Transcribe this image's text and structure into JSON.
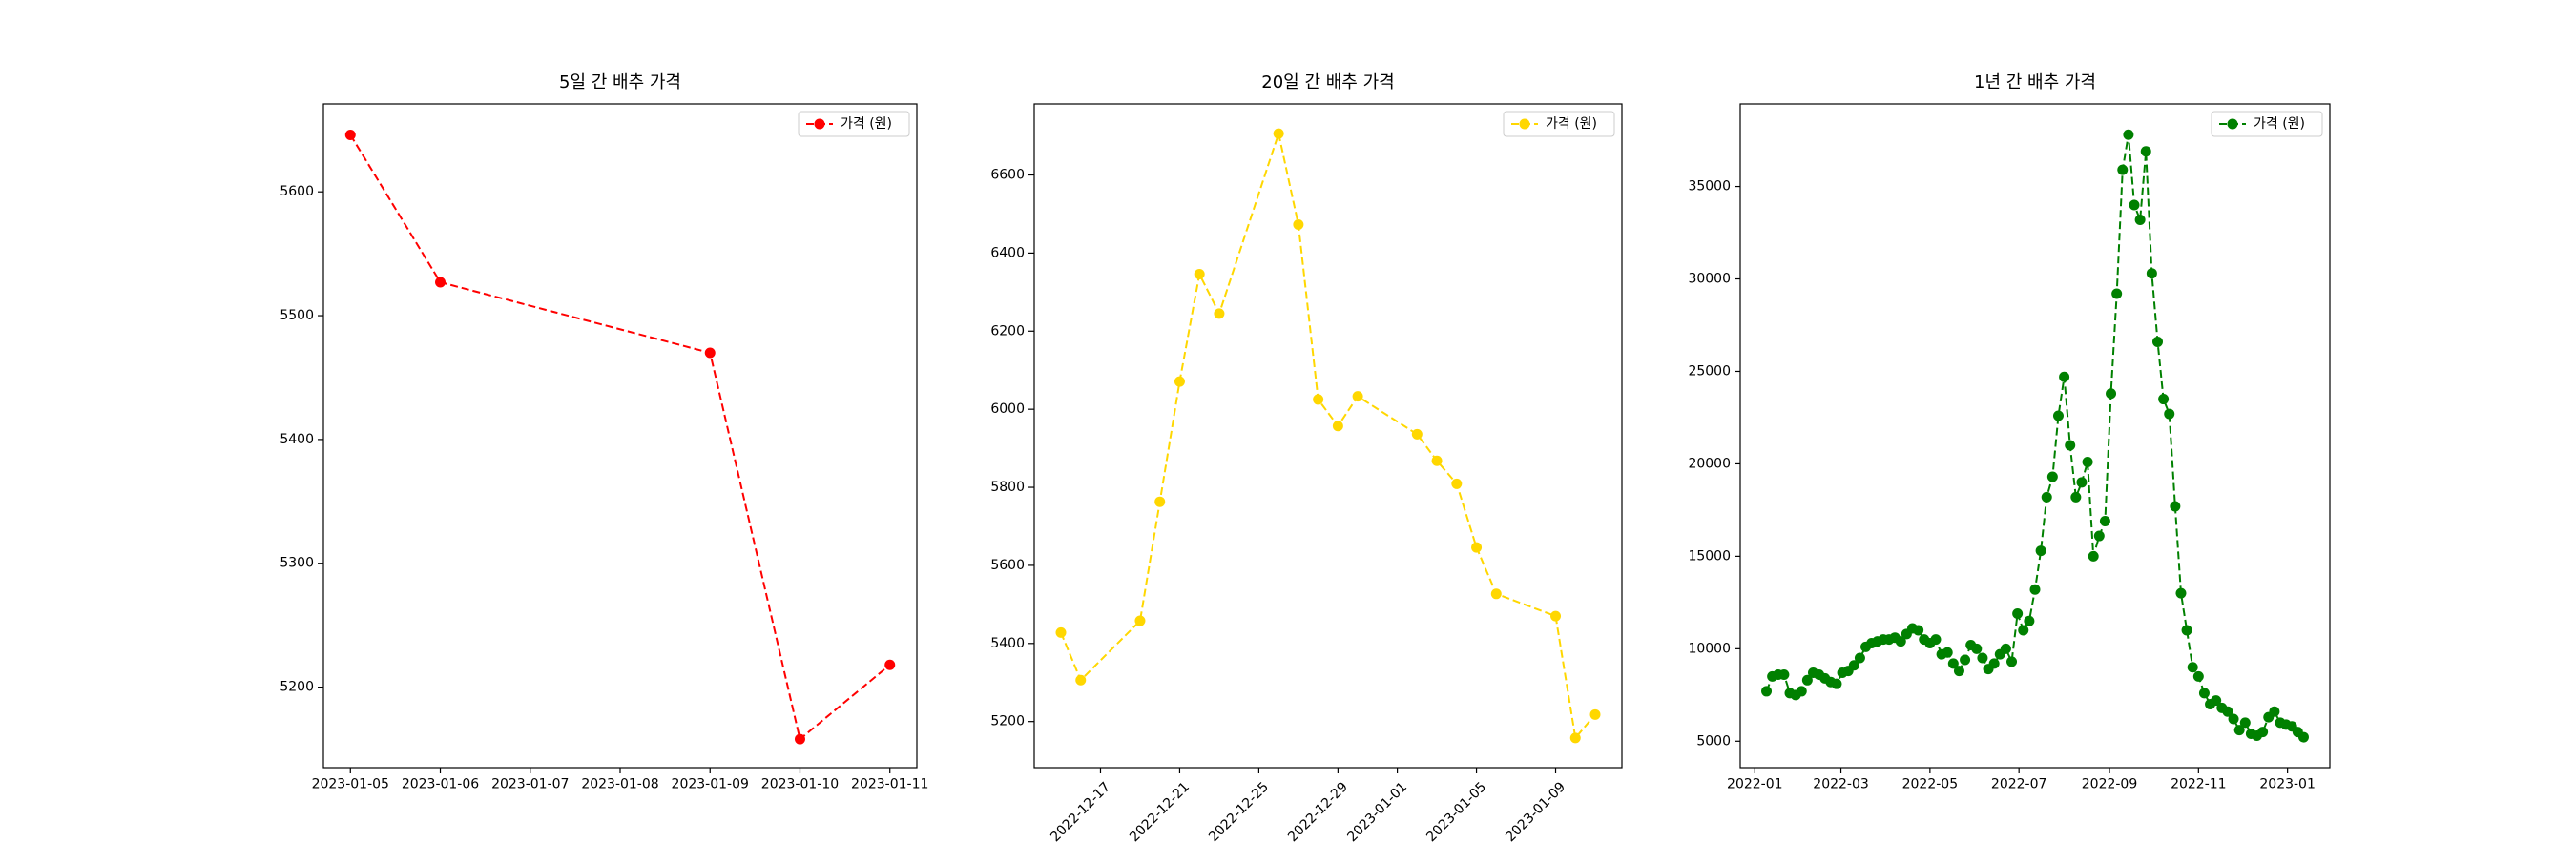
{
  "chart_data": [
    {
      "type": "line",
      "title": "5일 간 배추 가격",
      "x": [
        "2023-01-05",
        "2023-01-06",
        "2023-01-09",
        "2023-01-10",
        "2023-01-11"
      ],
      "series": [
        {
          "name": "가격 (원)",
          "color": "#ff0000",
          "values": [
            5646,
            5527,
            5470,
            5158,
            5218
          ]
        }
      ],
      "xlim": [
        "2023-01-04T16:48:00Z",
        "2023-01-11T07:12:00Z"
      ],
      "xticks": [
        "2023-01-05",
        "2023-01-06",
        "2023-01-07",
        "2023-01-08",
        "2023-01-09",
        "2023-01-10",
        "2023-01-11"
      ],
      "ylim": [
        5135,
        5671
      ],
      "yticks": [
        5200,
        5300,
        5400,
        5500,
        5600
      ],
      "legend": "upper right",
      "linestyle": "dashed",
      "marker": "o",
      "xtick_rotation": 0
    },
    {
      "type": "line",
      "title": "20일 간 배추 가격",
      "x": [
        "2022-12-15",
        "2022-12-16",
        "2022-12-19",
        "2022-12-20",
        "2022-12-21",
        "2022-12-22",
        "2022-12-23",
        "2022-12-26",
        "2022-12-27",
        "2022-12-28",
        "2022-12-29",
        "2022-12-30",
        "2023-01-02",
        "2023-01-03",
        "2023-01-04",
        "2023-01-05",
        "2023-01-06",
        "2023-01-09",
        "2023-01-10",
        "2023-01-11"
      ],
      "series": [
        {
          "name": "가격 (원)",
          "color": "#ffd700",
          "values": [
            5428,
            5306,
            5458,
            5763,
            6071,
            6346,
            6245,
            6706,
            6473,
            6025,
            5957,
            6033,
            5936,
            5868,
            5809,
            5646,
            5527,
            5470,
            5158,
            5218
          ]
        }
      ],
      "xlim": [
        "2022-12-13T15:36:00Z",
        "2023-01-12T08:24:00Z"
      ],
      "xticks": [
        "2022-12-17",
        "2022-12-21",
        "2022-12-25",
        "2022-12-29",
        "2023-01-01",
        "2023-01-05",
        "2023-01-09"
      ],
      "ylim": [
        5082,
        6782
      ],
      "yticks": [
        5200,
        5400,
        5600,
        5800,
        6000,
        6200,
        6400,
        6600
      ],
      "legend": "upper right",
      "linestyle": "dashed",
      "marker": "o",
      "xtick_rotation": 45
    },
    {
      "type": "line",
      "title": "1년 간 배추 가격",
      "x": [
        "2022-01-09",
        "2022-01-13",
        "2022-01-17",
        "2022-01-21",
        "2022-01-25",
        "2022-01-29",
        "2022-02-02",
        "2022-02-06",
        "2022-02-10",
        "2022-02-14",
        "2022-02-18",
        "2022-02-22",
        "2022-02-26",
        "2022-03-02",
        "2022-03-06",
        "2022-03-10",
        "2022-03-14",
        "2022-03-18",
        "2022-03-22",
        "2022-03-26",
        "2022-03-30",
        "2022-04-03",
        "2022-04-07",
        "2022-04-11",
        "2022-04-15",
        "2022-04-19",
        "2022-04-23",
        "2022-04-27",
        "2022-05-01",
        "2022-05-05",
        "2022-05-09",
        "2022-05-13",
        "2022-05-17",
        "2022-05-21",
        "2022-05-25",
        "2022-05-29",
        "2022-06-02",
        "2022-06-06",
        "2022-06-10",
        "2022-06-14",
        "2022-06-18",
        "2022-06-22",
        "2022-06-26",
        "2022-06-30",
        "2022-07-04",
        "2022-07-08",
        "2022-07-12",
        "2022-07-16",
        "2022-07-20",
        "2022-07-24",
        "2022-07-28",
        "2022-08-01",
        "2022-08-05",
        "2022-08-09",
        "2022-08-13",
        "2022-08-17",
        "2022-08-21",
        "2022-08-25",
        "2022-08-29",
        "2022-09-02",
        "2022-09-06",
        "2022-09-10",
        "2022-09-14",
        "2022-09-18",
        "2022-09-22",
        "2022-09-26",
        "2022-09-30",
        "2022-10-04",
        "2022-10-08",
        "2022-10-12",
        "2022-10-16",
        "2022-10-20",
        "2022-10-24",
        "2022-10-28",
        "2022-11-01",
        "2022-11-05",
        "2022-11-09",
        "2022-11-13",
        "2022-11-17",
        "2022-11-21",
        "2022-11-25",
        "2022-11-29",
        "2022-12-03",
        "2022-12-07",
        "2022-12-11",
        "2022-12-15",
        "2022-12-19",
        "2022-12-23",
        "2022-12-27",
        "2022-12-31",
        "2023-01-04",
        "2023-01-08",
        "2023-01-12"
      ],
      "series": [
        {
          "name": "가격 (원)",
          "color": "#008000",
          "values": [
            7700,
            8500,
            8600,
            8600,
            7600,
            7500,
            7700,
            8300,
            8700,
            8600,
            8400,
            8200,
            8100,
            8700,
            8800,
            9100,
            9500,
            10100,
            10300,
            10400,
            10500,
            10500,
            10600,
            10400,
            10800,
            11100,
            11000,
            10500,
            10300,
            10500,
            9700,
            9800,
            9200,
            8800,
            9400,
            10200,
            10000,
            9500,
            8900,
            9200,
            9700,
            10000,
            9300,
            11900,
            11000,
            11500,
            13200,
            15300,
            18200,
            19300,
            22600,
            24700,
            21000,
            18200,
            19000,
            20100,
            15000,
            16100,
            16900,
            23800,
            29200,
            35900,
            37800,
            34000,
            33200,
            36900,
            30300,
            26600,
            23500,
            22700,
            17700,
            13000,
            11000,
            9000,
            8500,
            7600,
            7000,
            7200,
            6800,
            6600,
            6200,
            5600,
            6000,
            5400,
            5300,
            5500,
            6300,
            6600,
            6000,
            5900,
            5800,
            5500,
            5218
          ]
        }
      ],
      "xlim": [
        "2021-12-22",
        "2023-01-30"
      ],
      "xticks": [
        "2022-01",
        "2022-03",
        "2022-05",
        "2022-07",
        "2022-09",
        "2022-11",
        "2023-01"
      ],
      "ylim": [
        3571,
        39464
      ],
      "yticks": [
        5000,
        10000,
        15000,
        20000,
        25000,
        30000,
        35000
      ],
      "legend": "upper right",
      "linestyle": "dashed",
      "marker": "o",
      "xtick_rotation": 0
    }
  ]
}
